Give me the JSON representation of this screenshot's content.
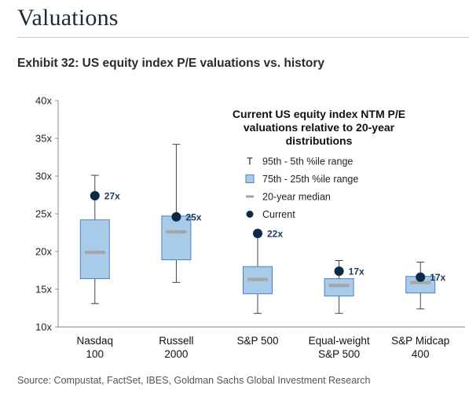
{
  "page": {
    "title": "Valuations",
    "exhibit": "Exhibit 32: US equity index P/E valuations vs. history",
    "source": "Source: Compustat, FactSet, IBES, Goldman Sachs Global Investment Research"
  },
  "chart_data": {
    "type": "box",
    "title_lines": [
      "Current US equity index NTM P/E",
      "valuations relative to 20-year",
      "distributions"
    ],
    "ylim": [
      10,
      40
    ],
    "yticks": [
      10,
      15,
      20,
      25,
      30,
      35,
      40
    ],
    "ytick_labels": [
      "10x",
      "15x",
      "20x",
      "25x",
      "30x",
      "35x",
      "40x"
    ],
    "categories": [
      {
        "name": "Nasdaq",
        "sub": "100"
      },
      {
        "name": "Russell",
        "sub": "2000"
      },
      {
        "name": "S&P 500",
        "sub": ""
      },
      {
        "name": "Equal-weight",
        "sub": "S&P 500"
      },
      {
        "name": "S&P Midcap",
        "sub": "400"
      }
    ],
    "p5": [
      13.1,
      15.9,
      11.8,
      11.8,
      12.4
    ],
    "p25": [
      16.4,
      18.9,
      14.4,
      14.1,
      14.5
    ],
    "median": [
      19.9,
      22.6,
      16.3,
      15.5,
      15.9
    ],
    "p75": [
      24.2,
      24.7,
      18.0,
      16.4,
      16.7
    ],
    "p95": [
      30.1,
      34.2,
      22.3,
      18.8,
      18.6
    ],
    "current": [
      27.4,
      24.6,
      22.4,
      17.4,
      16.6
    ],
    "current_labels": [
      "27x",
      "25x",
      "22x",
      "17x",
      "17x"
    ],
    "legend": [
      {
        "label": "95th - 5th %ile range",
        "marker": "T"
      },
      {
        "label": "75th - 25th %ile range",
        "marker": "box"
      },
      {
        "label": "20-year median",
        "marker": "dash"
      },
      {
        "label": "Current",
        "marker": "dot"
      }
    ],
    "colors": {
      "box_fill": "#a9cbea",
      "box_stroke": "#4f81bd",
      "median": "#a6a6a6",
      "whisker": "#404040",
      "current": "#0b2a4a",
      "label": "#1b3a5c"
    },
    "grid": false
  }
}
